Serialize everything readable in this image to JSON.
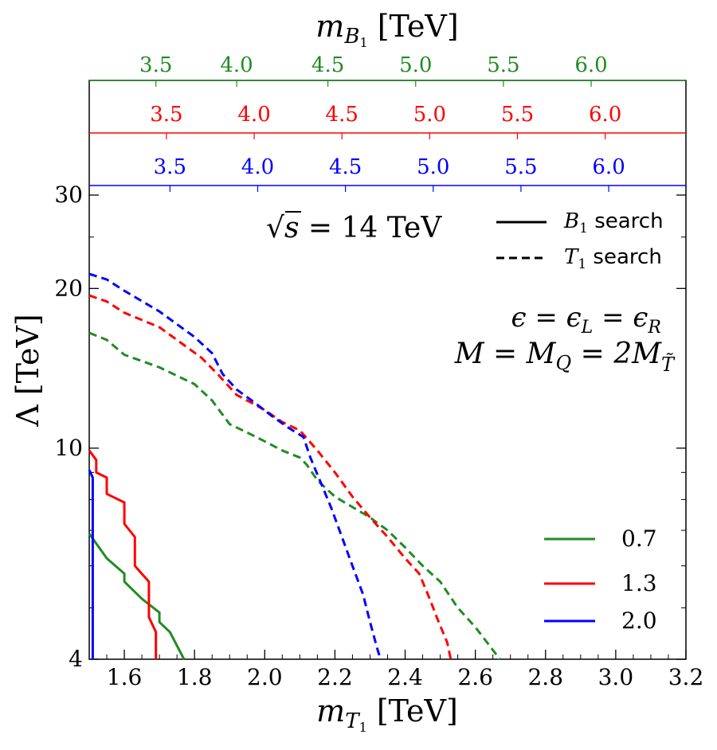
{
  "chart_data": {
    "type": "line",
    "x_axis": {
      "label_main": "m",
      "label_sub": "T",
      "label_subsub": "1",
      "label_unit": " [TeV]",
      "range": [
        1.5,
        3.2
      ],
      "ticks": [
        1.6,
        1.8,
        2.0,
        2.2,
        2.4,
        2.6,
        2.8,
        3.0,
        3.2
      ],
      "tick_labels": [
        "1.6",
        "1.8",
        "2.0",
        "2.2",
        "2.4",
        "2.6",
        "2.8",
        "3.0",
        "3.2"
      ],
      "minor_step": 0.05
    },
    "y_axis": {
      "label_main": "Λ",
      "label_unit": " [TeV]",
      "scale": "log",
      "range": [
        4,
        30
      ],
      "ticks": [
        4,
        10,
        20,
        30
      ],
      "tick_labels": [
        "4",
        "10",
        "20",
        "30"
      ],
      "minor_ticks": [
        5,
        6,
        7,
        8,
        9,
        25
      ]
    },
    "top_axis": {
      "label_main": "m",
      "label_sub": "B",
      "label_subsub": "1",
      "label_unit": " [TeV]",
      "tick_labels": [
        "3.5",
        "4.0",
        "4.5",
        "5.0",
        "5.5",
        "6.0"
      ],
      "rows": [
        {
          "color": "#228B22",
          "ticks_mT": [
            1.69,
            1.92,
            2.18,
            2.43,
            2.68,
            2.93
          ]
        },
        {
          "color": "#ff0000",
          "ticks_mT": [
            1.72,
            1.97,
            2.22,
            2.47,
            2.72,
            2.97
          ]
        },
        {
          "color": "#0000ff",
          "ticks_mT": [
            1.73,
            1.98,
            2.23,
            2.48,
            2.73,
            2.98
          ]
        }
      ]
    },
    "annotations": {
      "energy_prefix": "√",
      "energy_var": "s",
      "energy_text": " = 14 TeV",
      "eps_text": "ϵ = ϵ",
      "eps_sub_L": "L",
      "eps_mid": " = ϵ",
      "eps_sub_R": "R",
      "mass_text": "M = M",
      "mass_sub_Q": "Q",
      "mass_mid": " = 2M",
      "mass_sub_T": "T̃"
    },
    "style_legend": [
      {
        "symbol": "B",
        "sub": "1",
        "label": " search",
        "dash": "solid"
      },
      {
        "symbol": "T",
        "sub": "1",
        "label": " search",
        "dash": "dashed"
      }
    ],
    "series": [
      {
        "name": "0.7",
        "color": "#228B22",
        "b1_search": [
          [
            1.5,
            6.9
          ],
          [
            1.55,
            6.2
          ],
          [
            1.6,
            5.8
          ],
          [
            1.6,
            5.6
          ],
          [
            1.65,
            5.2
          ],
          [
            1.7,
            4.9
          ],
          [
            1.7,
            4.7
          ],
          [
            1.73,
            4.5
          ],
          [
            1.77,
            4.0
          ]
        ],
        "t1_search": [
          [
            1.5,
            16.5
          ],
          [
            1.55,
            16.0
          ],
          [
            1.6,
            15.0
          ],
          [
            1.7,
            14.2
          ],
          [
            1.8,
            13.2
          ],
          [
            1.85,
            12.3
          ],
          [
            1.9,
            11.1
          ],
          [
            1.95,
            10.7
          ],
          [
            2.0,
            10.3
          ],
          [
            2.05,
            9.9
          ],
          [
            2.1,
            9.6
          ],
          [
            2.12,
            9.3
          ],
          [
            2.15,
            8.7
          ],
          [
            2.2,
            8.1
          ],
          [
            2.3,
            7.4
          ],
          [
            2.35,
            7.0
          ],
          [
            2.4,
            6.5
          ],
          [
            2.45,
            6.0
          ],
          [
            2.5,
            5.6
          ],
          [
            2.55,
            5.0
          ],
          [
            2.6,
            4.6
          ],
          [
            2.67,
            4.0
          ]
        ]
      },
      {
        "name": "1.3",
        "color": "#ff0000",
        "b1_search": [
          [
            1.5,
            9.9
          ],
          [
            1.52,
            9.5
          ],
          [
            1.52,
            9.0
          ],
          [
            1.55,
            8.8
          ],
          [
            1.55,
            8.2
          ],
          [
            1.6,
            7.9
          ],
          [
            1.6,
            7.2
          ],
          [
            1.63,
            6.8
          ],
          [
            1.63,
            6.0
          ],
          [
            1.67,
            5.6
          ],
          [
            1.67,
            4.8
          ],
          [
            1.69,
            4.5
          ],
          [
            1.69,
            4.0
          ]
        ],
        "t1_search": [
          [
            1.5,
            19.4
          ],
          [
            1.55,
            18.9
          ],
          [
            1.6,
            18.0
          ],
          [
            1.7,
            16.9
          ],
          [
            1.75,
            16.0
          ],
          [
            1.82,
            14.8
          ],
          [
            1.87,
            13.7
          ],
          [
            1.92,
            12.6
          ],
          [
            1.97,
            12.1
          ],
          [
            2.0,
            11.8
          ],
          [
            2.05,
            11.2
          ],
          [
            2.1,
            10.8
          ],
          [
            2.15,
            9.9
          ],
          [
            2.2,
            9.0
          ],
          [
            2.25,
            8.1
          ],
          [
            2.3,
            7.4
          ],
          [
            2.35,
            6.8
          ],
          [
            2.4,
            6.2
          ],
          [
            2.44,
            5.8
          ],
          [
            2.47,
            5.2
          ],
          [
            2.49,
            4.8
          ],
          [
            2.52,
            4.3
          ],
          [
            2.53,
            4.0
          ]
        ]
      },
      {
        "name": "2.0",
        "color": "#0000ff",
        "b1_search": [
          [
            1.5,
            9.1
          ],
          [
            1.51,
            8.8
          ],
          [
            1.51,
            4.0
          ]
        ],
        "t1_search": [
          [
            1.5,
            21.3
          ],
          [
            1.55,
            20.8
          ],
          [
            1.6,
            19.8
          ],
          [
            1.7,
            18.1
          ],
          [
            1.8,
            16.2
          ],
          [
            1.85,
            15.1
          ],
          [
            1.88,
            13.8
          ],
          [
            1.92,
            12.9
          ],
          [
            1.97,
            12.2
          ],
          [
            2.02,
            11.5
          ],
          [
            2.07,
            10.9
          ],
          [
            2.11,
            10.5
          ],
          [
            2.13,
            9.6
          ],
          [
            2.16,
            8.6
          ],
          [
            2.19,
            7.7
          ],
          [
            2.22,
            6.8
          ],
          [
            2.25,
            6.0
          ],
          [
            2.28,
            5.3
          ],
          [
            2.3,
            4.7
          ],
          [
            2.32,
            4.2
          ],
          [
            2.33,
            4.0
          ]
        ]
      }
    ]
  }
}
